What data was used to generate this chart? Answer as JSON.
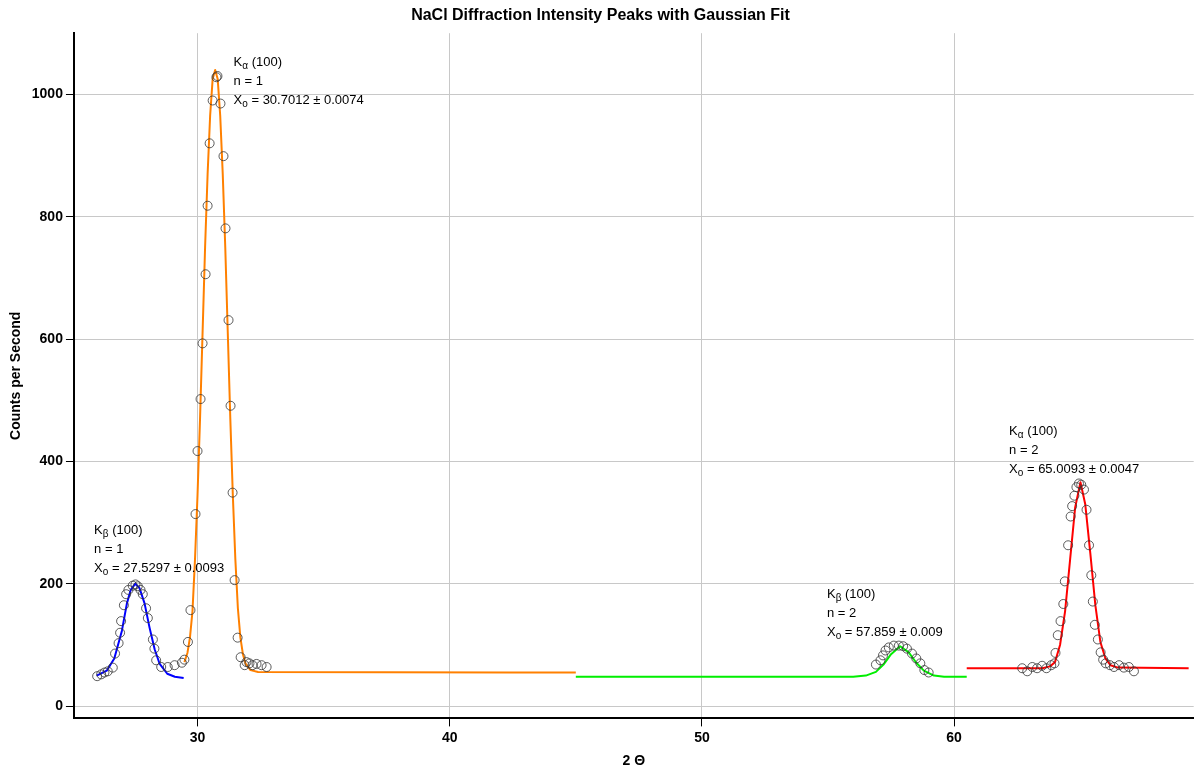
{
  "chart_data": {
    "type": "scatter",
    "title": "NaCl Diffraction Intensity Peaks with Gaussian Fit",
    "xlabel": "2 Θ",
    "ylabel": "Counts per Second",
    "xlim": [
      25.1,
      69.5
    ],
    "xticks": [
      30,
      40,
      50,
      60
    ],
    "ylim": [
      -20,
      1100
    ],
    "yticks": [
      0,
      200,
      400,
      600,
      800,
      1000
    ],
    "grid": true,
    "legend": false,
    "series": [
      {
        "type": "scatter",
        "marker": "circle",
        "color": "#333333",
        "x": [
          26.02,
          26.18,
          26.31,
          26.44,
          26.64,
          26.73,
          26.87,
          26.93,
          26.97,
          27.08,
          27.17,
          27.26,
          27.43,
          27.54,
          27.63,
          27.74,
          27.83,
          27.96,
          28.03,
          28.23,
          28.29,
          28.36,
          28.56,
          28.82,
          29.09,
          29.38,
          29.48,
          29.62,
          29.72,
          29.92,
          30.0,
          30.12,
          30.2,
          30.32,
          30.4,
          30.48,
          30.6,
          30.75,
          30.79,
          30.91,
          31.03,
          31.11,
          31.23,
          31.31,
          31.39,
          31.47,
          31.59,
          31.71,
          31.87,
          31.94,
          32.06,
          32.18,
          32.34,
          32.54,
          32.74,
          56.9,
          57.08,
          57.18,
          57.28,
          57.41,
          57.61,
          57.81,
          57.98,
          58.13,
          58.33,
          58.5,
          58.66,
          58.82,
          58.99,
          62.7,
          62.9,
          63.1,
          63.29,
          63.49,
          63.66,
          63.85,
          63.98,
          64.02,
          64.11,
          64.22,
          64.33,
          64.39,
          64.52,
          64.62,
          64.68,
          64.77,
          64.85,
          64.95,
          65.04,
          65.15,
          65.25,
          65.35,
          65.44,
          65.5,
          65.58,
          65.7,
          65.81,
          65.91,
          66.01,
          66.18,
          66.34,
          66.54,
          66.73,
          66.93,
          67.13
        ],
        "values": [
          49,
          52,
          55,
          57,
          63,
          86,
          103,
          120,
          139,
          165,
          183,
          190,
          197,
          199,
          196,
          190,
          183,
          160,
          144,
          109,
          94,
          75,
          64,
          64,
          67,
          71,
          76,
          105,
          157,
          314,
          417,
          502,
          593,
          706,
          818,
          920,
          990,
          1028,
          1030,
          985,
          899,
          781,
          631,
          491,
          349,
          206,
          112,
          80,
          67,
          72,
          70,
          67,
          69,
          67,
          64,
          68,
          75,
          83,
          91,
          96,
          99,
          99,
          98,
          94,
          86,
          78,
          70,
          59,
          55,
          62,
          57,
          64,
          62,
          66,
          62,
          67,
          70,
          87,
          116,
          139,
          167,
          204,
          263,
          310,
          327,
          344,
          358,
          364,
          362,
          354,
          321,
          263,
          214,
          171,
          133,
          109,
          88,
          76,
          70,
          67,
          64,
          67,
          63,
          64,
          57
        ]
      },
      {
        "type": "line",
        "marker": "none",
        "color": "#0000ff",
        "x": [
          26.0,
          26.4,
          26.7,
          27.0,
          27.2,
          27.35,
          27.53,
          27.7,
          27.9,
          28.1,
          28.3,
          28.5,
          28.8,
          29.1,
          29.45
        ],
        "values": [
          50,
          58,
          78,
          123,
          168,
          190,
          200,
          193,
          168,
          128,
          93,
          69,
          53,
          48,
          46
        ]
      },
      {
        "type": "line",
        "marker": "none",
        "color": "#ff8000",
        "x": [
          29.48,
          29.6,
          29.7,
          29.8,
          29.9,
          30.0,
          30.1,
          30.2,
          30.3,
          30.4,
          30.5,
          30.6,
          30.7,
          30.8,
          30.9,
          31.0,
          31.1,
          31.2,
          31.3,
          31.4,
          31.5,
          31.6,
          31.7,
          31.8,
          31.9,
          32.1,
          32.4,
          45.0
        ],
        "values": [
          72,
          87,
          112,
          155,
          240,
          345,
          470,
          610,
          750,
          870,
          965,
          1025,
          1040,
          1025,
          965,
          870,
          750,
          610,
          470,
          345,
          240,
          160,
          112,
          85,
          70,
          59,
          56,
          55
        ]
      },
      {
        "type": "line",
        "marker": "none",
        "color": "#00ee00",
        "x": [
          45.0,
          56.0,
          56.5,
          56.9,
          57.2,
          57.5,
          57.86,
          58.2,
          58.5,
          58.8,
          59.2,
          59.6,
          60.5
        ],
        "values": [
          48,
          48,
          50,
          56,
          68,
          85,
          98,
          88,
          71,
          58,
          50,
          48,
          48
        ]
      },
      {
        "type": "line",
        "marker": "none",
        "color": "#ff0000",
        "x": [
          60.5,
          63.5,
          63.8,
          64.0,
          64.2,
          64.4,
          64.6,
          64.8,
          65.01,
          65.2,
          65.4,
          65.6,
          65.8,
          66.0,
          66.2,
          66.5,
          69.3
        ],
        "values": [
          62,
          62,
          65,
          72,
          100,
          155,
          240,
          325,
          366,
          330,
          250,
          165,
          105,
          78,
          67,
          63,
          62
        ]
      }
    ],
    "annotations": [
      "K$_{β}$ (100)\nn = 1\nX$_{o}$ = 27.5297 ± 0.0093",
      "K$_{α}$ (100)\nn = 1\nX$_{o}$ = 30.7012 ± 0.0074",
      "K$_{β}$ (100)\nn = 2\nX$_{o}$ = 57.859 ± 0.009",
      "K$_{α}$ (100)\nn = 2\nX$_{o}$ = 65.0093 ± 0.0047"
    ]
  }
}
